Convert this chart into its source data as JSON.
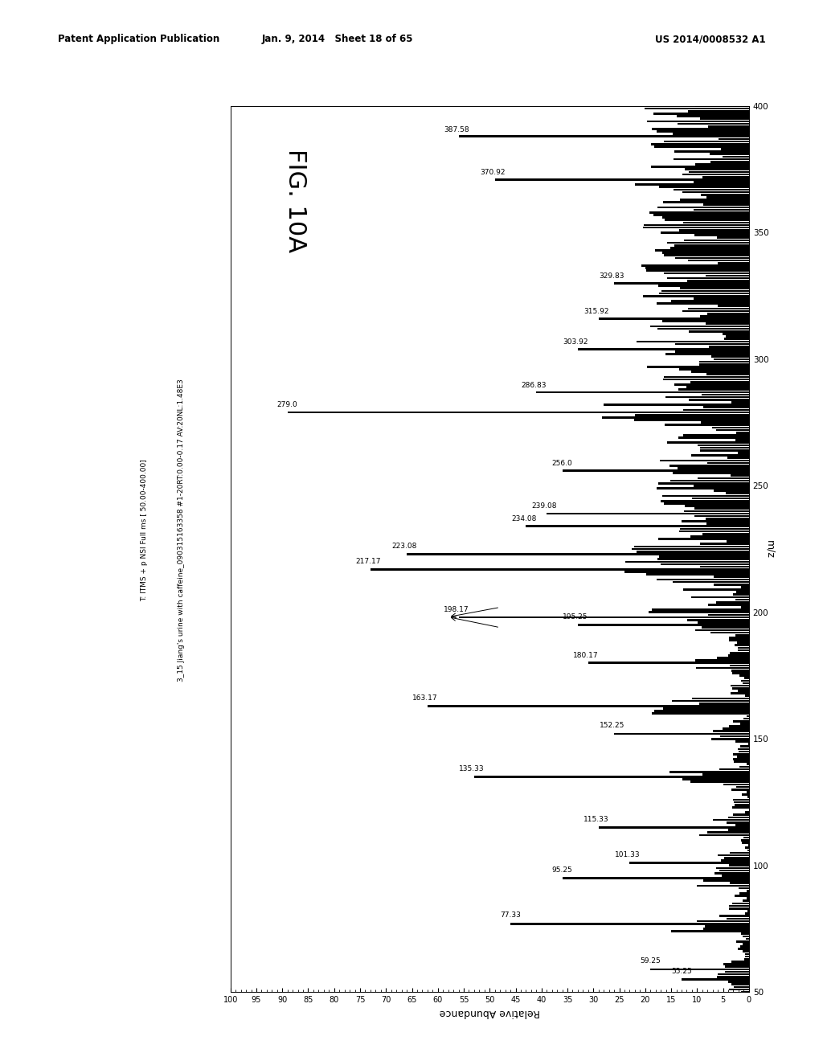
{
  "figure_label": "FIG. 10A",
  "header_left": "Patent Application Publication",
  "header_center": "Jan. 9, 2014   Sheet 18 of 65",
  "header_right": "US 2014/0008532 A1",
  "scan_info_line1": "3_15 Jiang's urine with caffeine_090315163358 #1-20RT:0.00-0.17 AV:20NL:1.48E3",
  "scan_info_line2": "T: ITMS + p NSI Full ms [ 50.00-400.00]",
  "mz_min": 50,
  "mz_max": 400,
  "ab_min": 0,
  "ab_max": 100,
  "yticks_mz": [
    50,
    100,
    150,
    200,
    250,
    300,
    350,
    400
  ],
  "xticks_ab": [
    0,
    5,
    10,
    15,
    20,
    25,
    30,
    35,
    40,
    45,
    50,
    55,
    60,
    65,
    70,
    75,
    80,
    85,
    90,
    95,
    100
  ],
  "labeled_peaks": [
    {
      "mz": 55.25,
      "abundance": 13
    },
    {
      "mz": 59.25,
      "abundance": 19
    },
    {
      "mz": 77.33,
      "abundance": 46
    },
    {
      "mz": 95.25,
      "abundance": 36
    },
    {
      "mz": 101.33,
      "abundance": 23
    },
    {
      "mz": 115.33,
      "abundance": 29
    },
    {
      "mz": 135.33,
      "abundance": 53
    },
    {
      "mz": 152.25,
      "abundance": 26
    },
    {
      "mz": 163.17,
      "abundance": 62
    },
    {
      "mz": 180.17,
      "abundance": 31
    },
    {
      "mz": 195.25,
      "abundance": 33
    },
    {
      "mz": 198.17,
      "abundance": 56
    },
    {
      "mz": 217.17,
      "abundance": 73
    },
    {
      "mz": 223.08,
      "abundance": 66
    },
    {
      "mz": 234.08,
      "abundance": 43
    },
    {
      "mz": 239.08,
      "abundance": 39
    },
    {
      "mz": 256.0,
      "abundance": 36
    },
    {
      "mz": 279.0,
      "abundance": 89
    },
    {
      "mz": 286.83,
      "abundance": 41
    },
    {
      "mz": 303.92,
      "abundance": 33
    },
    {
      "mz": 315.92,
      "abundance": 29
    },
    {
      "mz": 329.83,
      "abundance": 26
    },
    {
      "mz": 370.92,
      "abundance": 49
    },
    {
      "mz": 387.58,
      "abundance": 56
    }
  ],
  "background_color": "#ffffff",
  "bar_color": "#000000",
  "axes_color": "#000000",
  "fig_width": 10.24,
  "fig_height": 13.2,
  "fig_dpi": 100
}
